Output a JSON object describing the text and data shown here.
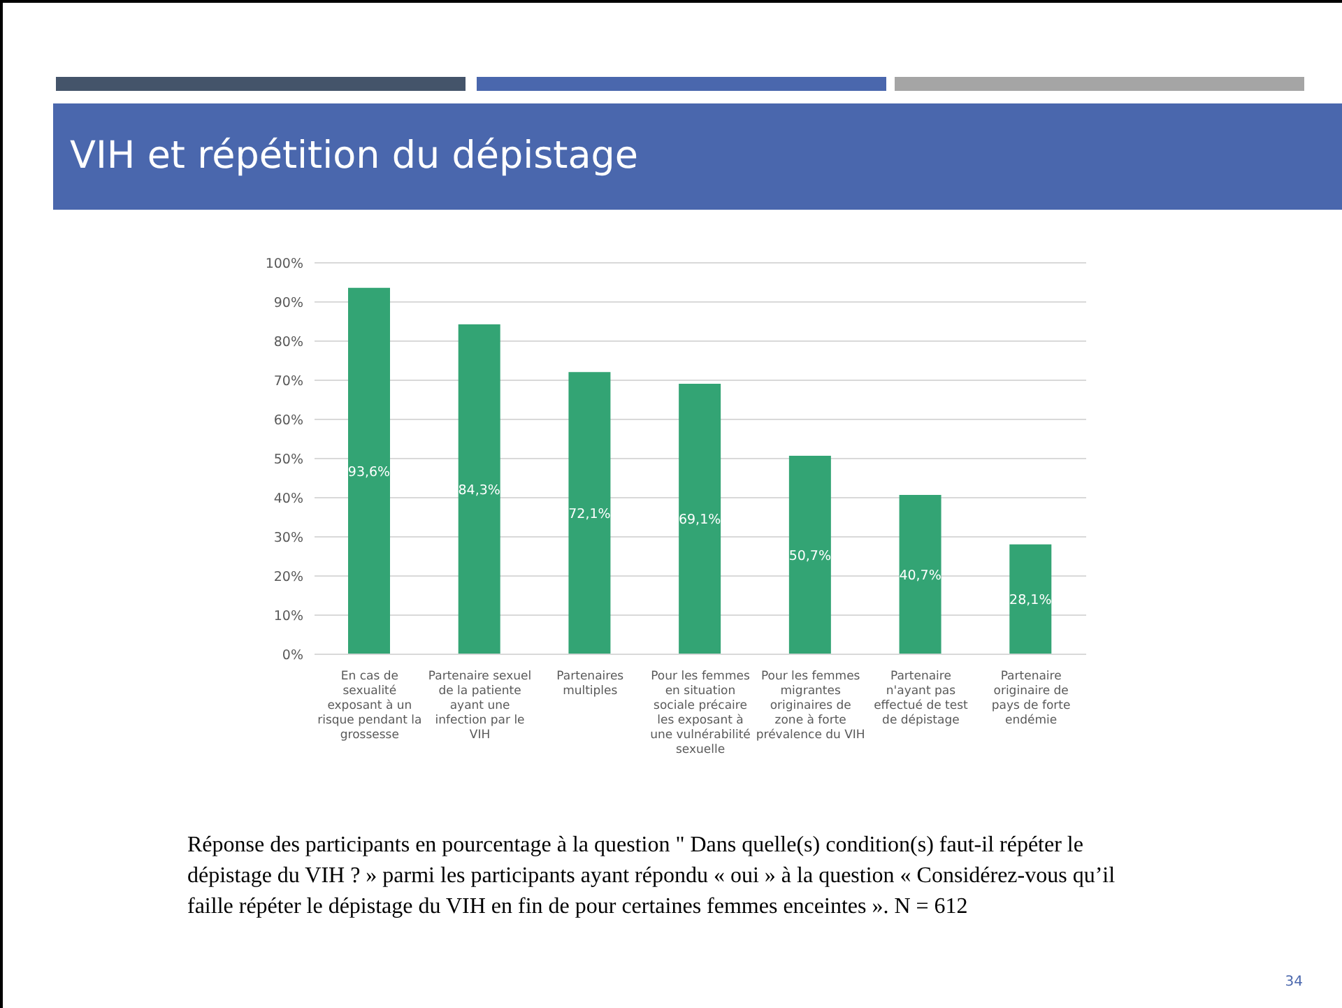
{
  "chart_data": {
    "type": "bar",
    "title": "VIH et répétition du dépistage",
    "categories": [
      "En cas de sexualité exposant à un risque pendant la grossesse",
      "Partenaire sexuel de la patiente ayant une infection par le VIH",
      "Partenaires multiples",
      "Pour les femmes en situation sociale précaire les exposant à une vulnérabilité sexuelle",
      "Pour les femmes migrantes originaires de zone à forte prévalence du VIH",
      "Partenaire n'ayant pas effectué de test de dépistage",
      "Partenaire originaire de pays de forte endémie"
    ],
    "values": [
      93.6,
      84.3,
      72.1,
      69.1,
      50.7,
      40.7,
      28.1
    ],
    "value_labels": [
      "93,6%",
      "84,3%",
      "72,1%",
      "69,1%",
      "50,7%",
      "40,7%",
      "28,1%"
    ],
    "color": "#33a474",
    "ylim": [
      0,
      100
    ],
    "yticks": [
      {
        "value": 0,
        "label": "0%"
      },
      {
        "value": 10,
        "label": "10%"
      },
      {
        "value": 20,
        "label": "20%"
      },
      {
        "value": 30,
        "label": "30%"
      },
      {
        "value": 40,
        "label": "40%"
      },
      {
        "value": 50,
        "label": "50%"
      },
      {
        "value": 60,
        "label": "60%"
      },
      {
        "value": 70,
        "label": "70%"
      },
      {
        "value": 80,
        "label": "80%"
      },
      {
        "value": 90,
        "label": "90%"
      },
      {
        "value": 100,
        "label": "100%"
      }
    ],
    "grid": "y",
    "legend": false,
    "annotations": [
      "Réponse des participants en pourcentage à la question \" Dans quelle(s) condition(s) faut-il répéter le dépistage du VIH ? » parmi les participants ayant répondu « oui » à la question « Considérez-vous qu’il faille répéter le dépistage du VIH en fin de pour certaines femmes enceintes ». N = 612",
      "34"
    ]
  }
}
